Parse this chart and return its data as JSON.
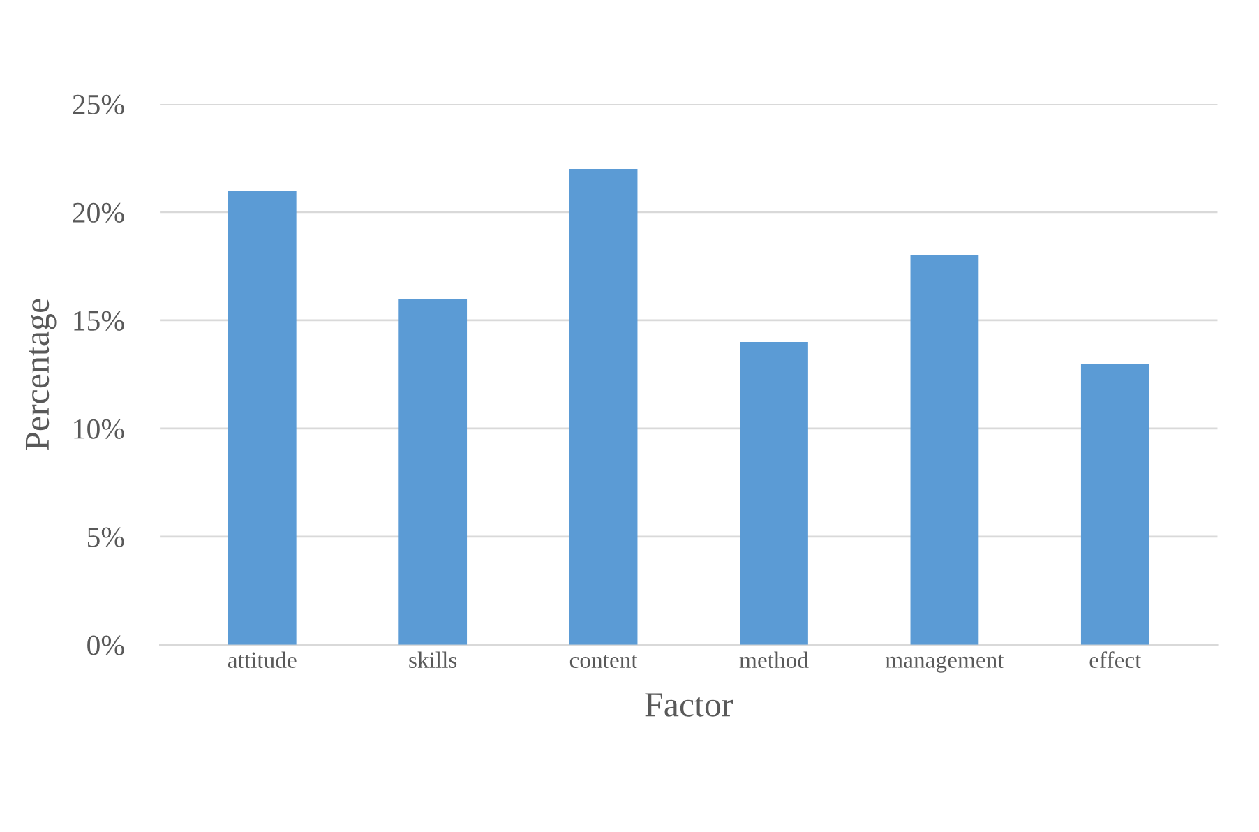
{
  "chart_data": {
    "type": "bar",
    "xlabel": "Factor",
    "ylabel": "Percentage",
    "categories": [
      "attitude",
      "skills",
      "content",
      "method",
      "management",
      "effect"
    ],
    "values": [
      21,
      16,
      22,
      14,
      18,
      13
    ],
    "color": "#5b9bd5",
    "ylim": [
      0,
      25
    ],
    "yticks": [
      {
        "value": 0,
        "label": "0%"
      },
      {
        "value": 5,
        "label": "5%"
      },
      {
        "value": 10,
        "label": "10%"
      },
      {
        "value": 15,
        "label": "15%"
      },
      {
        "value": 20,
        "label": "20%"
      },
      {
        "value": 25,
        "label": "25%"
      }
    ],
    "grid": "y",
    "legend": false
  }
}
